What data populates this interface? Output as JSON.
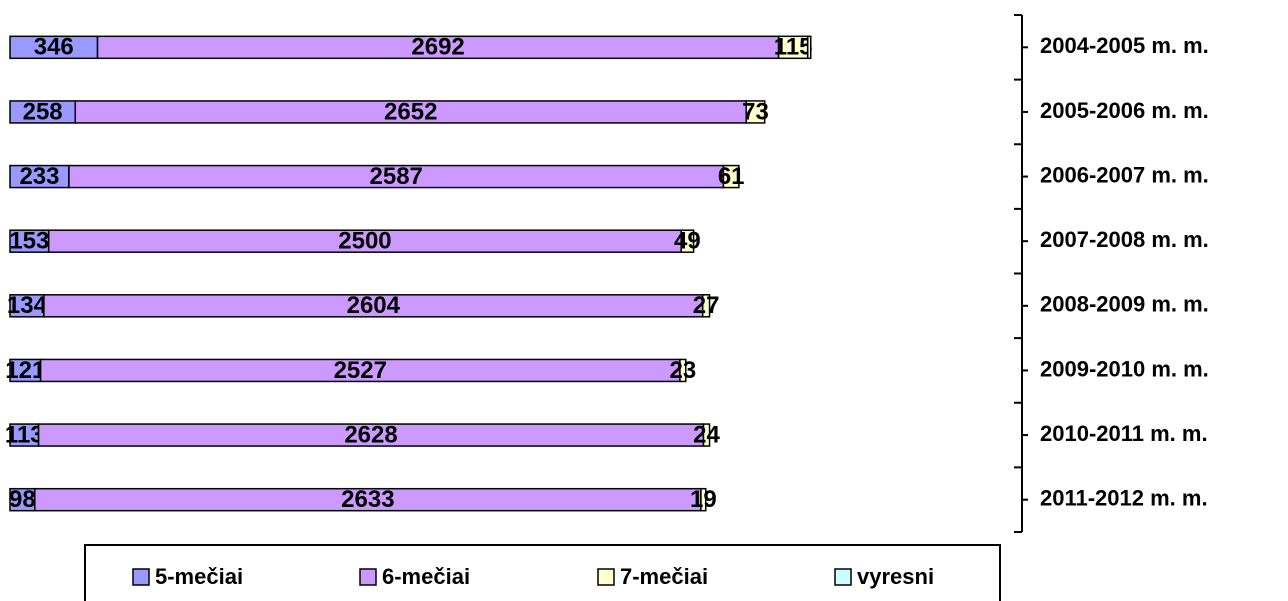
{
  "chart_data": {
    "type": "stacked_barh",
    "categories": [
      "2004-2005 m. m.",
      "2005-2006 m. m.",
      "2006-2007 m. m.",
      "2007-2008 m. m.",
      "2008-2009 m. m.",
      "2009-2010 m. m.",
      "2010-2011 m. m.",
      "2011-2012 m. m."
    ],
    "series": [
      {
        "name": "5-mečiai",
        "color": "#9999ff",
        "values": [
          346,
          258,
          233,
          153,
          134,
          121,
          113,
          98
        ]
      },
      {
        "name": "6-mečiai",
        "color": "#cc99ff",
        "values": [
          2692,
          2652,
          2587,
          2500,
          2604,
          2527,
          2628,
          2633
        ]
      },
      {
        "name": "7-mečiai",
        "color": "#ffffcc",
        "values": [
          115,
          73,
          61,
          49,
          27,
          23,
          24,
          19
        ]
      },
      {
        "name": "vyresni",
        "color": "#ccffff",
        "values": [
          12,
          0,
          0,
          0,
          0,
          0,
          0,
          0
        ]
      }
    ],
    "labeled_series": [
      0,
      1,
      2
    ],
    "xlim": [
      0,
      4000
    ]
  }
}
